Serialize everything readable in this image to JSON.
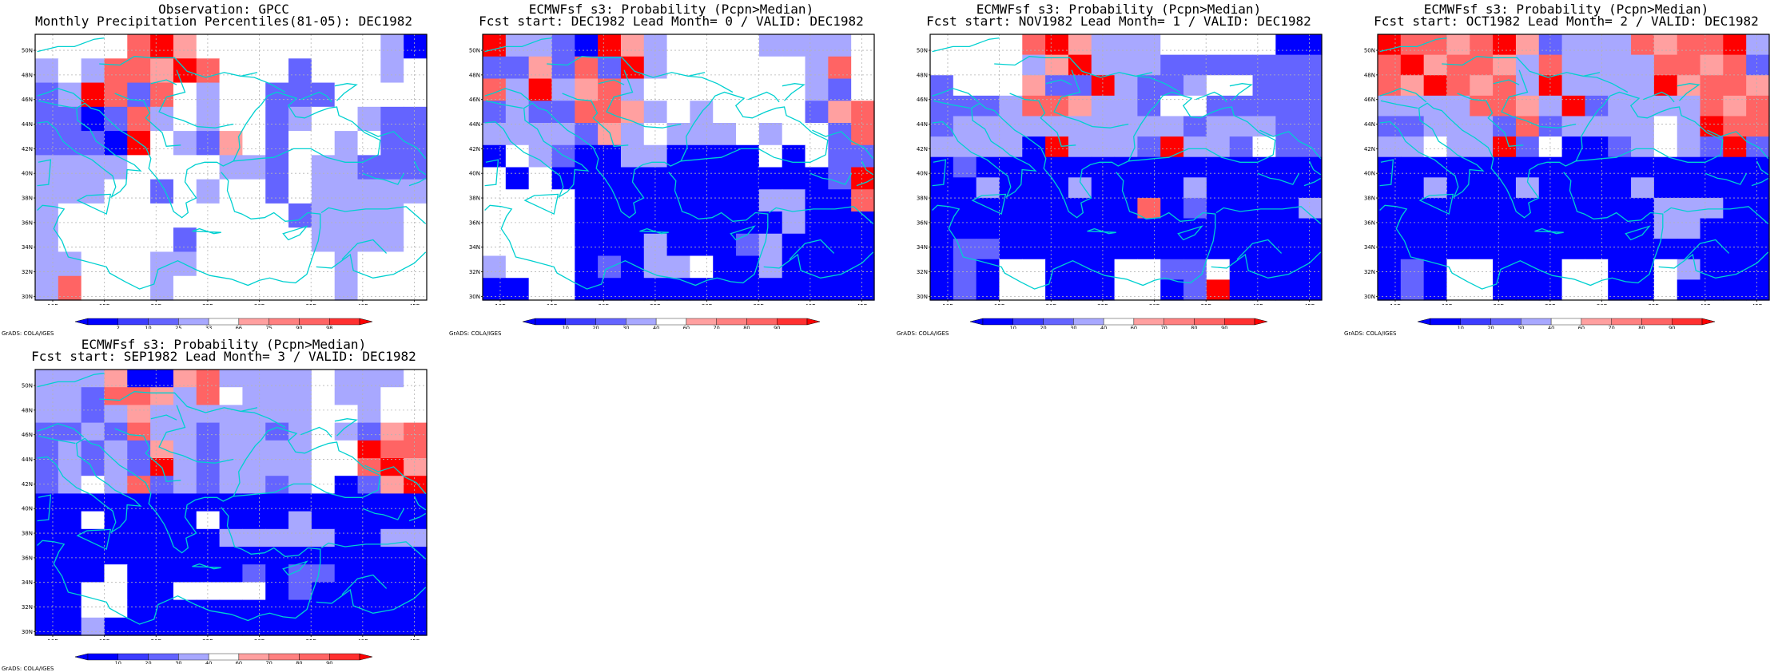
{
  "lat_ticks": [
    "30N",
    "32N",
    "34N",
    "36N",
    "38N",
    "40N",
    "42N",
    "44N",
    "46N",
    "48N",
    "50N"
  ],
  "lon_ticks": [
    "10E",
    "15E",
    "20E",
    "25E",
    "30E",
    "35E",
    "40E",
    "45E"
  ],
  "credit": "GrADS: COLA/IGES",
  "colors": {
    "dblue": "#0000ff",
    "mblue": "#6464ff",
    "lblue": "#a8a8ff",
    "white": "#ffffff",
    "lred": "#ffa0a0",
    "mred": "#ff6464",
    "dred": "#ff0000",
    "coast": "#00d0d0",
    "grid": "#b4b4b4"
  },
  "colorbar_obs": {
    "labels": [
      "2",
      "10",
      "25",
      "33",
      "66",
      "75",
      "90",
      "98"
    ]
  },
  "colorbar_prob": {
    "labels": [
      "10",
      "20",
      "30",
      "40",
      "60",
      "70",
      "80",
      "90"
    ]
  },
  "panels": [
    {
      "title1": "Observation: GPCC",
      "title2": "Monthly Precipitation Percentiles(81-05): DEC1982",
      "colorbar": "obs",
      "grid": [
        "wwwwRRRwwwwwwwwLD",
        "LwLRRRRRwwwMwwwLw",
        "MLRRMRwLwwMMMwwww",
        "MMDMRLwLwwMLwwLMM",
        "MMMDRwLMRwMwwLwMM",
        "LLLLwwwwLLMwLLMMM",
        "LLLwwMwLwwMwLLLLL",
        "LwwwwwwwwwwMLLLLw",
        "LwwwwwMwwwwwLLLLw",
        "LLwwwLLwwwwwwLwww",
        "LRwwwLwwwwwwwLwww"
      ]
    },
    {
      "title1": "ECMWFsf s3: Probability (Pcpn>Median)",
      "title2": "Fcst start: DEC1982  Lead Month= 0 / VALID: DEC1982",
      "colorbar": "prob",
      "grid": [
        "RLLMDRRLwwwwLLLLw",
        "MMRMRMRLwwwwwwLRw",
        "RLRLRRLwwwwwwwLMw",
        "MLMMRRRLwLwwwwMRR",
        "LLLLMRLwLLLwLwwMR",
        "DwLMDDLLDDDDwDwMM",
        "wDwDDDDDDDDDDDDMR",
        "wwwwDDDDDDDDLLDDR",
        "wwwwDDDDDDDDDLDDD",
        "wwwwDDDLDDDMLDDDD",
        "LwwwDMDLLwDDLDDDD",
        "DDwwDDDDDDDDDDDDD"
      ]
    },
    {
      "title1": "ECMWFsf s3: Probability (Pcpn>Median)",
      "title2": "Fcst start: NOV1982  Lead Month= 1 / VALID: DEC1982",
      "colorbar": "prob",
      "grid": [
        "wwwwRRRLLLwwwwwDD",
        "wwwwLRRLLLMMMMMMM",
        "MwwwRMMRLMMLwwMMM",
        "MMMLRRRLLMwwMMMMM",
        "MLLLLLLLLLLMLLLMM",
        "LLLLDRLLLMRLLMwMM",
        "DMDDDDDDDDDDDDDDD",
        "DDLDDDLDDDDLDDDDD",
        "DDDDDDDDDRDMDDDDL",
        "DDDDDDDDDDDDDDDDD",
        "DMMDDDDDDDDDDDDDD",
        "DMDwwDDDwwMMwDDDD",
        "DMDwwDDDwwDMRDDDD"
      ]
    },
    {
      "title1": "ECMWFsf s3: Probability (Pcpn>Median)",
      "title2": "Fcst start: OCT1982  Lead Month= 2 / VALID: DEC1982",
      "colorbar": "prob",
      "grid": [
        "RRRRRRRMLLLRRRRRL",
        "RRRRRRLRLLLLRRRRM",
        "RRRRRRLRLLLLRRRRR",
        "LLLLRRRLRMLLLLRRR",
        "MMLLLMRMLLLLwLRRR",
        "LLwLLRMwDDMLwLMRM",
        "DDDDDDDDDDDDDDDDD",
        "DDLDDDLDDDDLDDDDD",
        "DDDDDDDDDDDDLLLDD",
        "DDDDDDDDDDDDLLDDD",
        "DDDDDDDDDDDDDDDDD",
        "DMDwwDDDwwDDwLDDD",
        "DMDwwDDDwwDDwDDDD"
      ]
    },
    {
      "title1": "ECMWFsf s3: Probability (Pcpn>Median)",
      "title2": "Fcst start: SEP1982  Lead Month= 3 / VALID: DEC1982",
      "colorbar": "prob",
      "grid": [
        "LLLRDDRRLLLLwLLLw",
        "LLMRRRLRwLLLwLLww",
        "LLMLRLLLLLLLwwLww",
        "MMLMRLLMLLMLwLMRR",
        "MLMLMRLMLLLLwwRRR",
        "MLMLMRLMLLLLwwRRR",
        "MLwLRMLMLLMLwDMRR",
        "DDDDDDDDDDDDDDDDD",
        "DDwDDDDwDDDLDDDDD",
        "DDDDDDDDLLLLLDDLL",
        "DDDDDDDDDDDDDDDDD",
        "DDDwDDDDDMDMMDDDD",
        "DDwwDDwwwwDMDDDDD",
        "DDwwDDDDDDDDDDDDD",
        "DDLDDDDDDDDDDDDDD"
      ]
    }
  ]
}
